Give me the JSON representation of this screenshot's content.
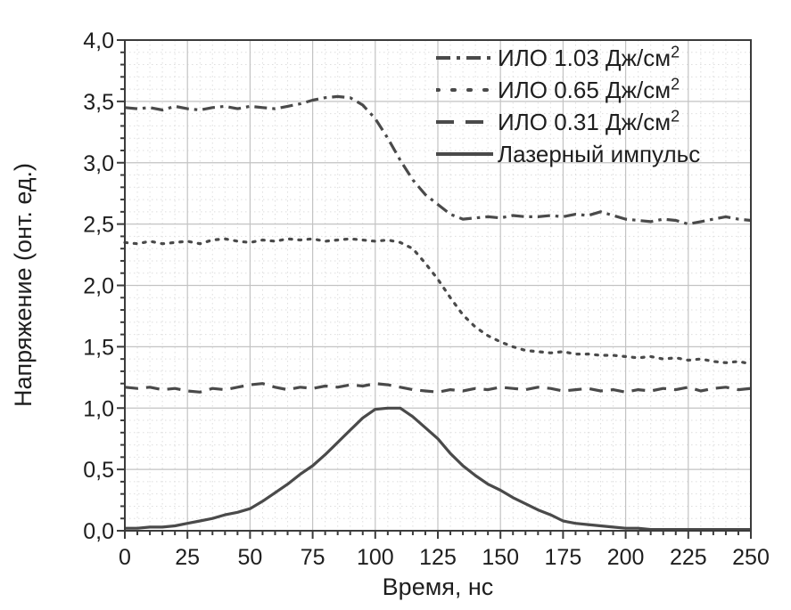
{
  "colors": {
    "curve": "#4a4a4a",
    "frame": "#3b3b3b",
    "grid_major": "#c3c3c3",
    "grid_minor": "#dedede",
    "text": "#1e1e1e",
    "background": "#ffffff"
  },
  "chart_data": {
    "type": "line",
    "title": "",
    "xlabel": "Время, нс",
    "ylabel": "Напряжение (онт. ед.)",
    "xlim": [
      0,
      250
    ],
    "ylim": [
      0,
      4
    ],
    "x_ticks": [
      0,
      25,
      50,
      75,
      100,
      125,
      150,
      175,
      200,
      225,
      250
    ],
    "x_tick_labels": [
      "0",
      "25",
      "50",
      "75",
      "100",
      "125",
      "150",
      "175",
      "200",
      "225",
      "250"
    ],
    "y_ticks": [
      0,
      0.5,
      1,
      1.5,
      2,
      2.5,
      3,
      3.5,
      4
    ],
    "y_tick_labels": [
      "0,0",
      "0,5",
      "1,0",
      "1,5",
      "2,0",
      "2,5",
      "3,0",
      "3,5",
      "4,0"
    ],
    "x_minor_step": 5,
    "y_minor_step": 0.1,
    "grid": "major solid, minor dotted",
    "legend_position": "top-right inside",
    "x": [
      0,
      5,
      10,
      15,
      20,
      25,
      30,
      35,
      40,
      45,
      50,
      55,
      60,
      65,
      70,
      75,
      80,
      85,
      90,
      95,
      100,
      105,
      110,
      115,
      120,
      125,
      130,
      135,
      140,
      145,
      150,
      155,
      160,
      165,
      170,
      175,
      180,
      185,
      190,
      195,
      200,
      205,
      210,
      215,
      220,
      225,
      230,
      235,
      240,
      245,
      250
    ],
    "series": [
      {
        "name": "ИЛО 1.03 Дж/см²",
        "line_style": "dashdot",
        "values": [
          3.45,
          3.44,
          3.45,
          3.43,
          3.46,
          3.44,
          3.43,
          3.45,
          3.46,
          3.44,
          3.46,
          3.45,
          3.44,
          3.46,
          3.48,
          3.51,
          3.53,
          3.54,
          3.53,
          3.47,
          3.36,
          3.2,
          3.02,
          2.86,
          2.74,
          2.66,
          2.58,
          2.54,
          2.55,
          2.56,
          2.55,
          2.57,
          2.56,
          2.56,
          2.57,
          2.56,
          2.58,
          2.57,
          2.6,
          2.57,
          2.54,
          2.53,
          2.52,
          2.54,
          2.53,
          2.5,
          2.52,
          2.54,
          2.56,
          2.54,
          2.53
        ]
      },
      {
        "name": "ИЛО 0.65 Дж/см²",
        "line_style": "dotted",
        "values": [
          2.35,
          2.34,
          2.36,
          2.34,
          2.35,
          2.36,
          2.34,
          2.37,
          2.38,
          2.36,
          2.35,
          2.37,
          2.36,
          2.38,
          2.37,
          2.38,
          2.36,
          2.37,
          2.38,
          2.37,
          2.36,
          2.37,
          2.35,
          2.3,
          2.18,
          2.05,
          1.9,
          1.76,
          1.66,
          1.59,
          1.54,
          1.5,
          1.47,
          1.46,
          1.45,
          1.46,
          1.44,
          1.44,
          1.43,
          1.43,
          1.42,
          1.41,
          1.42,
          1.4,
          1.41,
          1.39,
          1.4,
          1.38,
          1.37,
          1.38,
          1.36
        ]
      },
      {
        "name": "ИЛО 0.31 Дж/см²",
        "line_style": "dashed",
        "values": [
          1.17,
          1.16,
          1.17,
          1.15,
          1.16,
          1.14,
          1.13,
          1.16,
          1.15,
          1.17,
          1.19,
          1.2,
          1.17,
          1.15,
          1.17,
          1.16,
          1.18,
          1.17,
          1.19,
          1.18,
          1.2,
          1.19,
          1.17,
          1.15,
          1.14,
          1.13,
          1.15,
          1.14,
          1.16,
          1.15,
          1.17,
          1.16,
          1.15,
          1.17,
          1.16,
          1.14,
          1.15,
          1.16,
          1.14,
          1.15,
          1.13,
          1.15,
          1.14,
          1.16,
          1.15,
          1.17,
          1.14,
          1.16,
          1.17,
          1.15,
          1.16
        ]
      },
      {
        "name": "Лазерный импульс",
        "line_style": "solid",
        "values": [
          0.02,
          0.02,
          0.03,
          0.03,
          0.04,
          0.06,
          0.08,
          0.1,
          0.13,
          0.15,
          0.18,
          0.24,
          0.31,
          0.38,
          0.46,
          0.53,
          0.62,
          0.72,
          0.82,
          0.92,
          0.99,
          1.0,
          1.0,
          0.93,
          0.84,
          0.75,
          0.63,
          0.53,
          0.45,
          0.38,
          0.33,
          0.27,
          0.22,
          0.17,
          0.13,
          0.08,
          0.06,
          0.05,
          0.04,
          0.03,
          0.02,
          0.02,
          0.01,
          0.01,
          0.01,
          0.01,
          0.01,
          0.01,
          0.01,
          0.01,
          0.01
        ]
      }
    ]
  }
}
